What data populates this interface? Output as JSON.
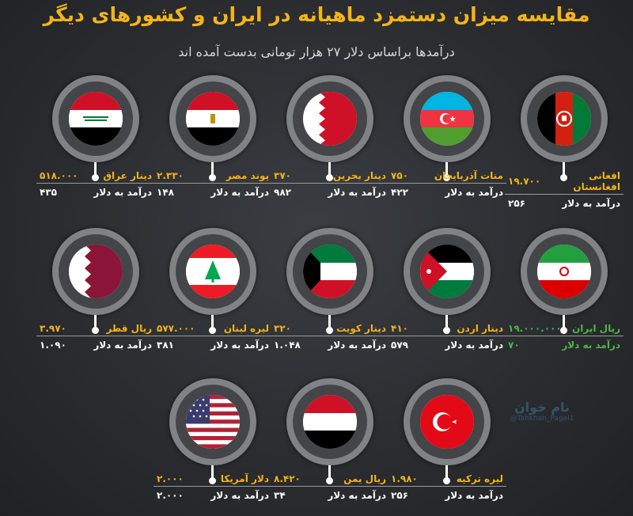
{
  "header": {
    "title": "مقایسه میزان دستمزد ماهیانه در ایران و کشورهای دیگر",
    "subtitle": "درآمدها براساس دلار ۲۷ هزار تومانی بدست آمده اند"
  },
  "income_label": "درآمد به دلار",
  "countries": [
    {
      "id": "afghanistan",
      "currency": "افغانی افغانستان",
      "wage": "۱۹.۷۰۰",
      "usd": "۲۵۶"
    },
    {
      "id": "azerbaijan",
      "currency": "منات آذربایجان",
      "wage": "۷۵۰",
      "usd": "۴۲۲"
    },
    {
      "id": "bahrain",
      "currency": "دینار بحرین",
      "wage": "۳۷۰",
      "usd": "۹۸۲"
    },
    {
      "id": "egypt",
      "currency": "پوند مصر",
      "wage": "۲.۳۳۰",
      "usd": "۱۴۸"
    },
    {
      "id": "iraq",
      "currency": "دینار عراق",
      "wage": "۵۱۸.۰۰۰",
      "usd": "۴۳۵"
    },
    {
      "id": "iran",
      "currency": "ریال ایران",
      "wage": "۱۹.۰۰۰.۰۰۰",
      "usd": "۷۰"
    },
    {
      "id": "jordan",
      "currency": "دینار اردن",
      "wage": "۴۱۰",
      "usd": "۵۷۹"
    },
    {
      "id": "kuwait",
      "currency": "دینار کویت",
      "wage": "۳۲۰",
      "usd": "۱.۰۴۸"
    },
    {
      "id": "lebanon",
      "currency": "لیره لبنان",
      "wage": "۵۷۷.۰۰۰",
      "usd": "۳۸۱"
    },
    {
      "id": "qatar",
      "currency": "ریال قطر",
      "wage": "۳.۹۷۰",
      "usd": "۱.۰۹۰"
    },
    {
      "id": "turkey",
      "currency": "لیره ترکیه",
      "wage": "۱.۹۸۰",
      "usd": "۲۵۶"
    },
    {
      "id": "yemen",
      "currency": "ریال یمن",
      "wage": "۸.۴۲۰",
      "usd": "۳۴"
    },
    {
      "id": "usa",
      "currency": "دلار آمریکا",
      "wage": "۲.۰۰۰",
      "usd": "۲.۰۰۰"
    }
  ],
  "watermark": {
    "name": "نام خوان",
    "handle": "@Tahkhan_Pagel1"
  },
  "colors": {
    "accent": "#f4b41a",
    "iran": "#4fb548",
    "text": "#ffffff"
  }
}
